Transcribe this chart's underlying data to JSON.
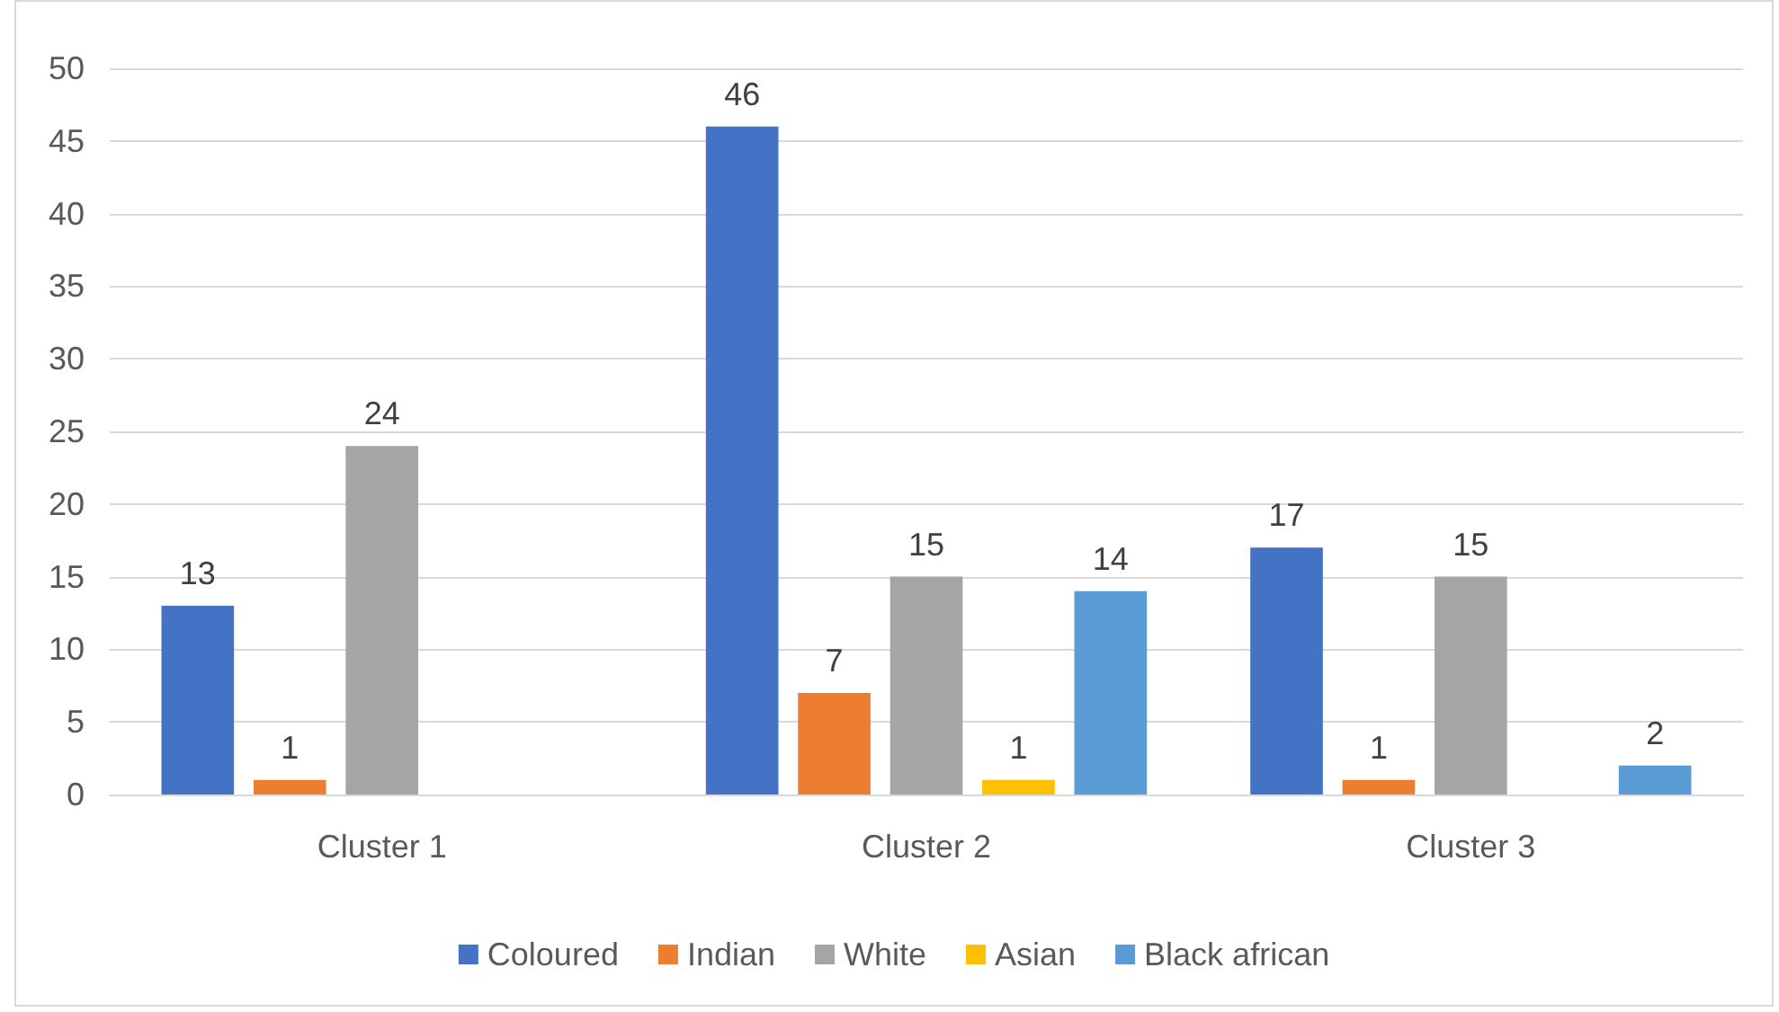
{
  "chart_data": {
    "type": "bar",
    "categories": [
      "Cluster 1",
      "Cluster 2",
      "Cluster 3"
    ],
    "series": [
      {
        "name": "Coloured",
        "color": "#4472c4",
        "values": [
          13,
          46,
          17
        ]
      },
      {
        "name": "Indian",
        "color": "#ed7d31",
        "values": [
          1,
          7,
          1
        ]
      },
      {
        "name": "White",
        "color": "#a5a5a5",
        "values": [
          24,
          15,
          15
        ]
      },
      {
        "name": "Asian",
        "color": "#ffc000",
        "values": [
          null,
          1,
          null
        ]
      },
      {
        "name": "Black african",
        "color": "#5b9bd5",
        "values": [
          null,
          14,
          2
        ]
      }
    ],
    "ylim": [
      0,
      50
    ],
    "yticks": [
      0,
      5,
      10,
      15,
      20,
      25,
      30,
      35,
      40,
      45,
      50
    ],
    "grid": "y",
    "legend": "bottom",
    "data_labels": true
  }
}
